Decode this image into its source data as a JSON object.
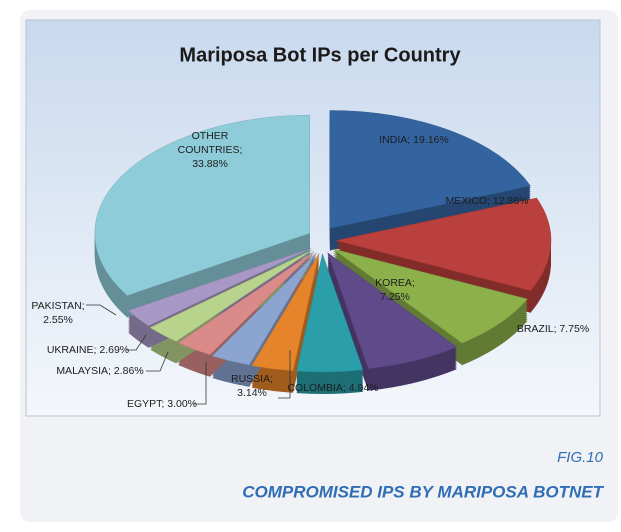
{
  "chart_data": {
    "type": "pie",
    "title": "Mariposa Bot IPs per Country",
    "categories": [
      "INDIA",
      "MEXICO",
      "BRAZIL",
      "KOREA",
      "COLOMBIA",
      "RUSSIA",
      "EGYPT",
      "MALAYSIA",
      "UKRAINE",
      "PAKISTAN",
      "OTHER COUNTRIES"
    ],
    "values": [
      19.16,
      12.86,
      7.75,
      7.25,
      4.94,
      3.14,
      3.0,
      2.86,
      2.69,
      2.55,
      33.88
    ],
    "value_labels": [
      "INDIA; 19.16%",
      "MEXICO; 12.86%",
      "BRAZIL; 7.75%",
      "KOREA;\n7.25%",
      "COLOMBIA; 4.94%",
      "RUSSIA;\n3.14%",
      "EGYPT; 3.00%",
      "MALAYSIA; 2.86%",
      "UKRAINE; 2.69%",
      "PAKISTAN;\n2.55%",
      "OTHER\nCOUNTRIES;\n33.88%"
    ],
    "colors": [
      "#3464a0",
      "#b9403c",
      "#8cb04a",
      "#5f4a8a",
      "#2a9ea9",
      "#e5842a",
      "#8ba5d0",
      "#d98a89",
      "#b8d38c",
      "#a898c5",
      "#8fccd9"
    ]
  },
  "caption": {
    "figure": "FIG.10",
    "text": "COMPROMISED IPS BY MARIPOSA BOTNET"
  }
}
